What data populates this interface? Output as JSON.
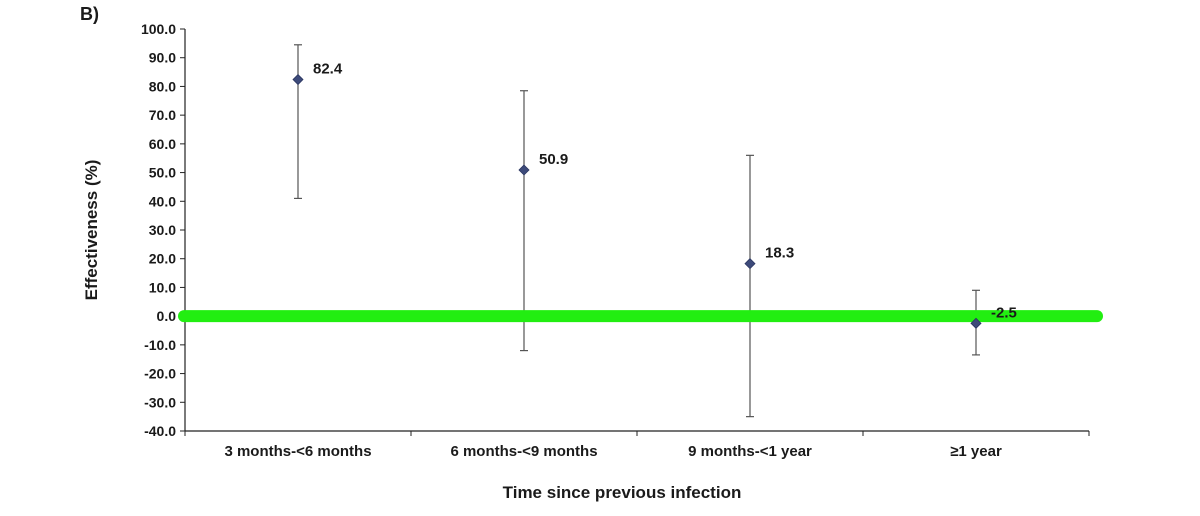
{
  "panel_label": "B)",
  "chart_data": {
    "type": "scatter",
    "title": "",
    "xlabel": "Time since previous infection",
    "ylabel": "Effectiveness (%)",
    "categories": [
      "3 months-<6 months",
      "6 months-<9 months",
      "9 months-<1 year",
      "≥1 year"
    ],
    "values": [
      82.4,
      50.9,
      18.3,
      -2.5
    ],
    "value_labels": [
      "82.4",
      "50.9",
      "18.3",
      "-2.5"
    ],
    "ci_lower": [
      41.0,
      -12.0,
      -35.0,
      -13.5
    ],
    "ci_upper": [
      94.5,
      78.5,
      56.0,
      9.0
    ],
    "ylim": [
      -40,
      100
    ],
    "ytick_labels": [
      "100.0",
      "90.0",
      "80.0",
      "70.0",
      "60.0",
      "50.0",
      "40.0",
      "30.0",
      "20.0",
      "10.0",
      "0.0",
      "-10.0",
      "-20.0",
      "-30.0",
      "-40.0"
    ],
    "reference_line": 0,
    "colors": {
      "marker": "#3d4a7a",
      "error_bar": "#555555",
      "reference_line": "#22ee11",
      "axis": "#222222"
    },
    "grid": false,
    "legend": "none"
  }
}
